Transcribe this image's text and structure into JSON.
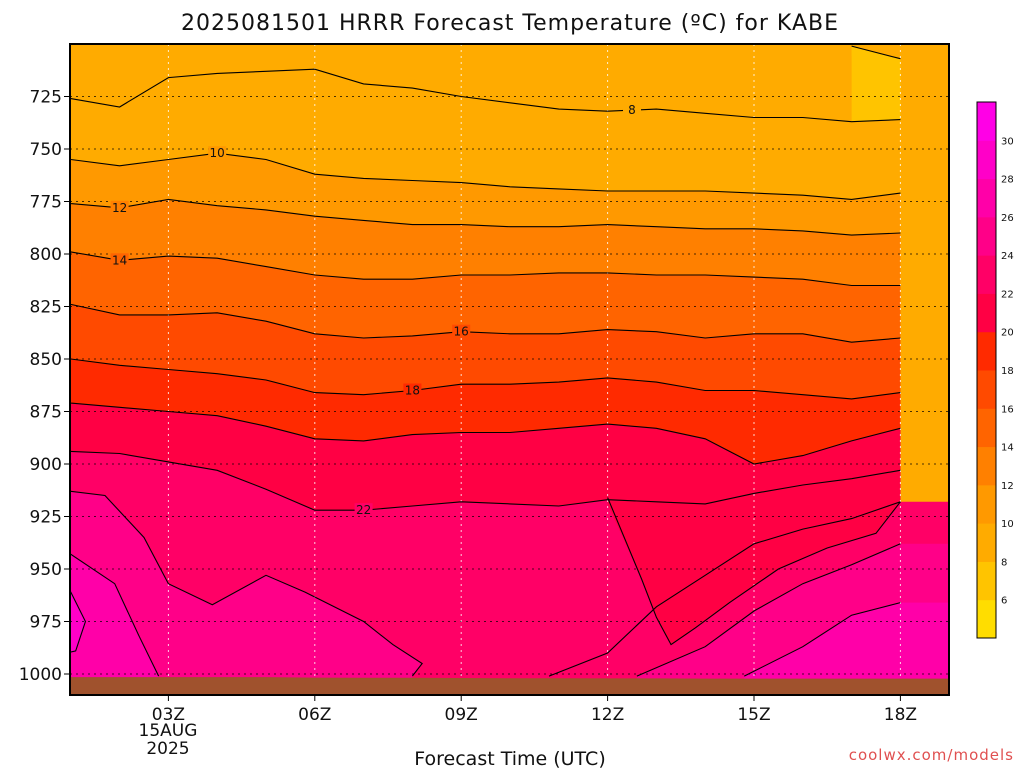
{
  "chart_data": {
    "type": "heatmap",
    "title": "2025081501 HRRR Forecast Temperature (ºC) for KABE",
    "xlabel": "Forecast Time (UTC)",
    "credit": "coolwx.com/models",
    "date_label": [
      "15AUG",
      "2025"
    ],
    "x_ticks": [
      "03Z",
      "06Z",
      "09Z",
      "12Z",
      "15Z",
      "18Z"
    ],
    "x_hours": [
      0,
      1,
      2,
      3,
      4,
      5,
      6,
      7,
      8,
      9,
      10,
      11,
      12,
      13,
      14,
      15,
      16,
      17,
      18
    ],
    "x_range_hours": [
      0,
      18
    ],
    "y_ticks": [
      "725",
      "750",
      "775",
      "800",
      "825",
      "850",
      "875",
      "900",
      "925",
      "950",
      "975",
      "1000"
    ],
    "y_range_hpa": [
      700,
      1010
    ],
    "grid": true,
    "colorbar": {
      "ticks": [
        "6",
        "8",
        "10",
        "12",
        "14",
        "16",
        "18",
        "20",
        "22",
        "24",
        "26",
        "28",
        "30"
      ],
      "levels": [
        5,
        7,
        9,
        11,
        13,
        15,
        17,
        19,
        21,
        23,
        25,
        27,
        29,
        31
      ],
      "colors": [
        "#ffdd00",
        "#ffc400",
        "#ffab00",
        "#ff9900",
        "#ff8000",
        "#ff6400",
        "#ff4a00",
        "#ff2a00",
        "#ff0044",
        "#ff0066",
        "#ff0088",
        "#ff00a8",
        "#ff00c8",
        "#ff00e6"
      ]
    },
    "ground_color": "#a0522d",
    "ground_hpa": [
      1001.5,
      1001.5,
      1001.5,
      1001.5,
      1001.5,
      1001.5,
      1001.7,
      1001.8,
      1001.8,
      1001.9,
      1002,
      1002,
      1002.1,
      1002.1,
      1002.2,
      1002.2,
      1002.2,
      1002.2,
      1002.2
    ],
    "isotherms": [
      {
        "temp": 6,
        "label": "",
        "label_hour": null,
        "hpa": [
          null,
          null,
          null,
          null,
          null,
          null,
          null,
          null,
          null,
          null,
          null,
          null,
          null,
          null,
          null,
          null,
          null,
          701,
          707
        ]
      },
      {
        "temp": 8,
        "label": "8",
        "label_hour": 12.5,
        "hpa": [
          720,
          726,
          730,
          716,
          714,
          713,
          712,
          719,
          721,
          725,
          728,
          731,
          732,
          731,
          733,
          735,
          735,
          737,
          736
        ]
      },
      {
        "temp": 10,
        "label": "10",
        "label_hour": 4,
        "hpa": [
          751,
          755,
          758,
          755,
          752,
          755,
          762,
          764,
          765,
          766,
          768,
          769,
          770,
          770,
          770,
          771,
          772,
          774,
          771
        ]
      },
      {
        "temp": 12,
        "label": "12",
        "label_hour": 2,
        "hpa": [
          773,
          776,
          778,
          774,
          777,
          779,
          782,
          784,
          786,
          786,
          787,
          787,
          786,
          787,
          788,
          788,
          789,
          791,
          790
        ]
      },
      {
        "temp": 14,
        "label": "14",
        "label_hour": 2,
        "hpa": [
          795,
          799,
          803,
          801,
          802,
          806,
          810,
          812,
          812,
          810,
          810,
          809,
          809,
          810,
          810,
          811,
          812,
          815,
          815
        ]
      },
      {
        "temp": 16,
        "label": "16",
        "label_hour": 9,
        "hpa": [
          816,
          824,
          829,
          829,
          828,
          832,
          838,
          840,
          839,
          837,
          838,
          838,
          836,
          837,
          840,
          838,
          838,
          842,
          840
        ]
      },
      {
        "temp": 18,
        "label": "18",
        "label_hour": 8,
        "hpa": [
          843,
          850,
          853,
          855,
          857,
          860,
          866,
          867,
          865,
          862,
          862,
          861,
          859,
          861,
          865,
          865,
          867,
          869,
          866
        ]
      },
      {
        "temp": 20,
        "label": "",
        "label_hour": null,
        "hpa": [
          867,
          871,
          873,
          875,
          877,
          882,
          888,
          889,
          886,
          885,
          885,
          883,
          881,
          883,
          888,
          900,
          896,
          889,
          883
        ]
      },
      {
        "temp": 22,
        "label": "22",
        "label_hour": 7,
        "hpa": [
          894,
          894,
          895,
          899,
          903,
          912,
          922,
          922,
          920,
          918,
          919,
          920,
          917,
          918,
          919,
          914,
          910,
          907,
          903
        ]
      }
    ],
    "warm_lobes": [
      {
        "temp": 24,
        "label": "",
        "points": [
          [
            0,
            919
          ],
          [
            1,
            913
          ],
          [
            1.7,
            915
          ],
          [
            2.5,
            935
          ],
          [
            3,
            957
          ],
          [
            3.9,
            967
          ],
          [
            5,
            953
          ],
          [
            5.8,
            961
          ],
          [
            7,
            975
          ],
          [
            7.6,
            986
          ],
          [
            8.2,
            995
          ],
          [
            8.0,
            1001
          ]
        ]
      },
      {
        "temp": 26,
        "label": "",
        "points": [
          [
            0,
            937
          ],
          [
            1,
            943
          ],
          [
            1.9,
            957
          ],
          [
            2.4,
            982
          ],
          [
            2.8,
            1001
          ]
        ]
      },
      {
        "temp": 28,
        "label": "",
        "points": [
          [
            0,
            964
          ],
          [
            1,
            961
          ],
          [
            1.3,
            975
          ],
          [
            1.1,
            989
          ],
          [
            0,
            995
          ]
        ]
      },
      {
        "temp": 22,
        "label": "",
        "points": [
          [
            10.8,
            1001
          ],
          [
            12,
            990
          ],
          [
            13,
            968
          ],
          [
            14,
            953
          ],
          [
            15,
            938
          ],
          [
            16,
            931
          ],
          [
            17,
            926
          ],
          [
            18,
            918
          ]
        ]
      },
      {
        "temp": 24,
        "label": "",
        "points": [
          [
            12.6,
            1001
          ],
          [
            14,
            987
          ],
          [
            15,
            970
          ],
          [
            16,
            957
          ],
          [
            17,
            948
          ],
          [
            18,
            938
          ]
        ]
      },
      {
        "temp": 26,
        "label": "",
        "points": [
          [
            14.8,
            1001
          ],
          [
            16,
            987
          ],
          [
            17,
            972
          ],
          [
            18,
            966
          ]
        ]
      }
    ],
    "cool_tongue_hours": [
      12,
      12.7,
      13.3,
      14
    ]
  }
}
